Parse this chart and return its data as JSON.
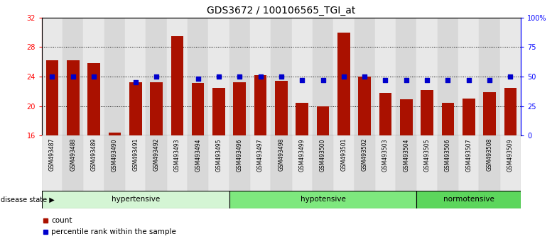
{
  "title": "GDS3672 / 100106565_TGI_at",
  "samples": [
    "GSM493487",
    "GSM493488",
    "GSM493489",
    "GSM493490",
    "GSM493491",
    "GSM493492",
    "GSM493493",
    "GSM493494",
    "GSM493495",
    "GSM493496",
    "GSM493497",
    "GSM493498",
    "GSM493499",
    "GSM493500",
    "GSM493501",
    "GSM493502",
    "GSM493503",
    "GSM493504",
    "GSM493505",
    "GSM493506",
    "GSM493507",
    "GSM493508",
    "GSM493509"
  ],
  "counts": [
    26.2,
    26.2,
    25.8,
    16.4,
    23.2,
    23.2,
    29.5,
    23.1,
    22.5,
    23.2,
    24.2,
    23.4,
    20.4,
    20.0,
    30.0,
    24.0,
    21.8,
    20.9,
    22.2,
    20.4,
    21.0,
    21.9,
    22.5
  ],
  "percentile_ranks": [
    50,
    50,
    50,
    null,
    45,
    50,
    null,
    48,
    50,
    50,
    50,
    50,
    47,
    47,
    50,
    50,
    47,
    47,
    47,
    47,
    47,
    47,
    50
  ],
  "groups": [
    {
      "label": "hypertensive",
      "start": 0,
      "end": 9,
      "color": "#d4f5d4"
    },
    {
      "label": "hypotensive",
      "start": 9,
      "end": 18,
      "color": "#7ee87e"
    },
    {
      "label": "normotensive",
      "start": 18,
      "end": 23,
      "color": "#5cd65c"
    }
  ],
  "bar_color": "#aa1100",
  "dot_color": "#0000cc",
  "ylim_left": [
    16,
    32
  ],
  "yticks_left": [
    16,
    20,
    24,
    28,
    32
  ],
  "yticks_right_labels": [
    "0",
    "25",
    "50",
    "75",
    "100%"
  ],
  "yticks_right_vals": [
    0,
    25,
    50,
    75,
    100
  ],
  "background_color": "#ffffff",
  "title_fontsize": 10,
  "tick_fontsize": 7,
  "label_fontsize": 7,
  "legend_label_count": "count",
  "legend_label_percentile": "percentile rank within the sample"
}
